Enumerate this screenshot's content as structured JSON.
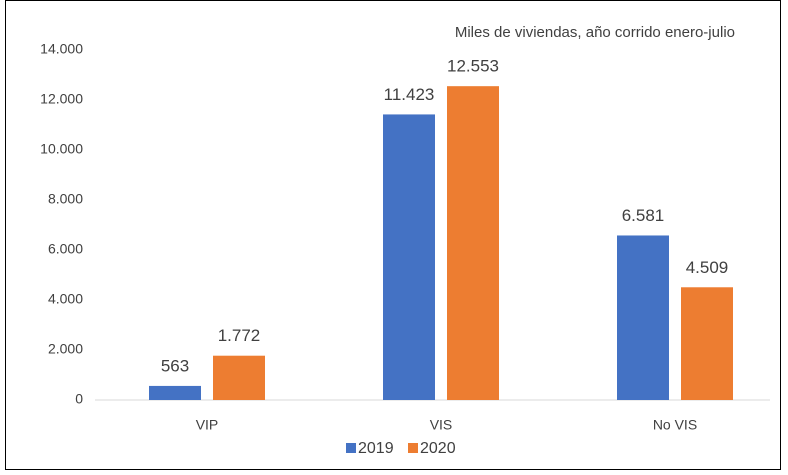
{
  "chart_data": {
    "type": "bar",
    "subtitle": "Miles de viviendas, año corrido enero-julio",
    "categories": [
      "VIP",
      "VIS",
      "No VIS"
    ],
    "series": [
      {
        "name": "2019",
        "color": "#4472c4",
        "values": [
          563,
          11423,
          6581
        ],
        "value_labels": [
          "563",
          "11.423",
          "6.581"
        ]
      },
      {
        "name": "2020",
        "color": "#ed7d31",
        "values": [
          1772,
          12553,
          4509
        ],
        "value_labels": [
          "1.772",
          "12.553",
          "4.509"
        ]
      }
    ],
    "ylim": [
      0,
      14000
    ],
    "yticks": [
      0,
      {
        "value": 2000,
        "label": "2.000"
      },
      {
        "value": 4000,
        "label": "4.000"
      },
      {
        "value": 6000,
        "label": "6.000"
      },
      {
        "value": 8000,
        "label": "8.000"
      },
      {
        "value": 10000,
        "label": "10.000"
      },
      {
        "value": 12000,
        "label": "12.000"
      },
      {
        "value": 14000,
        "label": "14.000"
      }
    ],
    "grid": false,
    "legend": "bottom"
  }
}
